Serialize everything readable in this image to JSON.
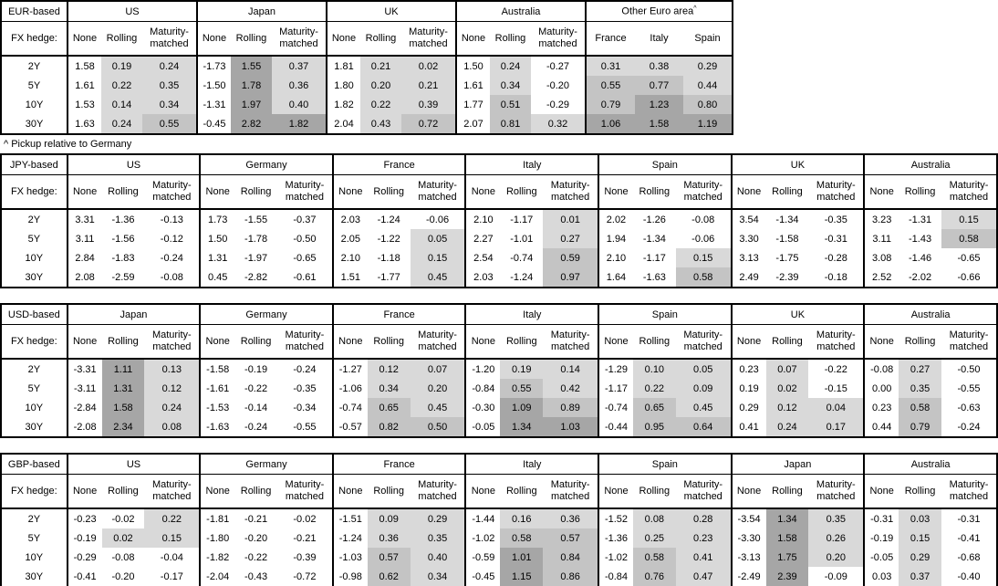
{
  "page": {
    "footnote": "^ Pickup relative to Germany",
    "fx_hedge_label": "FX hedge:",
    "hedge_headers": [
      "None",
      "Rolling",
      "Maturity-matched"
    ],
    "tenors": [
      "2Y",
      "5Y",
      "10Y",
      "30Y"
    ]
  },
  "heat_colors": {
    "none": "#ffffff",
    "light": "#d9d9d9",
    "medium": "#c4c4c4",
    "dark": "#a6a6a6"
  },
  "heat_thresholds": {
    "light_min": 0,
    "medium_min": 0.5,
    "dark_min": 1.0
  },
  "tables": [
    {
      "id": "eur-based-table",
      "base": "EUR-based",
      "groups": [
        {
          "name": "US",
          "type": "hedge",
          "rows": [
            [
              "1.58",
              "0.19",
              "0.24"
            ],
            [
              "1.61",
              "0.22",
              "0.35"
            ],
            [
              "1.53",
              "0.14",
              "0.34"
            ],
            [
              "1.63",
              "0.24",
              "0.55"
            ]
          ]
        },
        {
          "name": "Japan",
          "type": "hedge",
          "rows": [
            [
              "-1.73",
              "1.55",
              "0.37"
            ],
            [
              "-1.50",
              "1.78",
              "0.36"
            ],
            [
              "-1.31",
              "1.97",
              "0.40"
            ],
            [
              "-0.45",
              "2.82",
              "1.82"
            ]
          ]
        },
        {
          "name": "UK",
          "type": "hedge",
          "rows": [
            [
              "1.81",
              "0.21",
              "0.02"
            ],
            [
              "1.80",
              "0.20",
              "0.21"
            ],
            [
              "1.82",
              "0.22",
              "0.39"
            ],
            [
              "2.04",
              "0.43",
              "0.72"
            ]
          ]
        },
        {
          "name": "Australia",
          "type": "hedge",
          "rows": [
            [
              "1.50",
              "0.24",
              "-0.27"
            ],
            [
              "1.61",
              "0.34",
              "-0.20"
            ],
            [
              "1.77",
              "0.51",
              "-0.29"
            ],
            [
              "2.07",
              "0.81",
              "0.32"
            ]
          ]
        },
        {
          "name": "Other Euro area",
          "sup": "^",
          "type": "spread",
          "sub_headers": [
            "France",
            "Italy",
            "Spain"
          ],
          "rows": [
            [
              "0.31",
              "0.38",
              "0.29"
            ],
            [
              "0.55",
              "0.77",
              "0.44"
            ],
            [
              "0.79",
              "1.23",
              "0.80"
            ],
            [
              "1.06",
              "1.58",
              "1.19"
            ]
          ]
        }
      ]
    },
    {
      "id": "jpy-based-table",
      "base": "JPY-based",
      "groups": [
        {
          "name": "US",
          "type": "hedge",
          "rows": [
            [
              "3.31",
              "-1.36",
              "-0.13"
            ],
            [
              "3.11",
              "-1.56",
              "-0.12"
            ],
            [
              "2.84",
              "-1.83",
              "-0.24"
            ],
            [
              "2.08",
              "-2.59",
              "-0.08"
            ]
          ]
        },
        {
          "name": "Germany",
          "type": "hedge",
          "rows": [
            [
              "1.73",
              "-1.55",
              "-0.37"
            ],
            [
              "1.50",
              "-1.78",
              "-0.50"
            ],
            [
              "1.31",
              "-1.97",
              "-0.65"
            ],
            [
              "0.45",
              "-2.82",
              "-0.61"
            ]
          ]
        },
        {
          "name": "France",
          "type": "hedge",
          "rows": [
            [
              "2.03",
              "-1.24",
              "-0.06"
            ],
            [
              "2.05",
              "-1.22",
              "0.05"
            ],
            [
              "2.10",
              "-1.18",
              "0.15"
            ],
            [
              "1.51",
              "-1.77",
              "0.45"
            ]
          ]
        },
        {
          "name": "Italy",
          "type": "hedge",
          "rows": [
            [
              "2.10",
              "-1.17",
              "0.01"
            ],
            [
              "2.27",
              "-1.01",
              "0.27"
            ],
            [
              "2.54",
              "-0.74",
              "0.59"
            ],
            [
              "2.03",
              "-1.24",
              "0.97"
            ]
          ]
        },
        {
          "name": "Spain",
          "type": "hedge",
          "rows": [
            [
              "2.02",
              "-1.26",
              "-0.08"
            ],
            [
              "1.94",
              "-1.34",
              "-0.06"
            ],
            [
              "2.10",
              "-1.17",
              "0.15"
            ],
            [
              "1.64",
              "-1.63",
              "0.58"
            ]
          ]
        },
        {
          "name": "UK",
          "type": "hedge",
          "rows": [
            [
              "3.54",
              "-1.34",
              "-0.35"
            ],
            [
              "3.30",
              "-1.58",
              "-0.31"
            ],
            [
              "3.13",
              "-1.75",
              "-0.28"
            ],
            [
              "2.49",
              "-2.39",
              "-0.18"
            ]
          ]
        },
        {
          "name": "Australia",
          "type": "hedge",
          "rows": [
            [
              "3.23",
              "-1.31",
              "0.15"
            ],
            [
              "3.11",
              "-1.43",
              "0.58"
            ],
            [
              "3.08",
              "-1.46",
              "-0.65"
            ],
            [
              "2.52",
              "-2.02",
              "-0.66"
            ]
          ]
        }
      ]
    },
    {
      "id": "usd-based-table",
      "base": "USD-based",
      "groups": [
        {
          "name": "Japan",
          "type": "hedge",
          "rows": [
            [
              "-3.31",
              "1.11",
              "0.13"
            ],
            [
              "-3.11",
              "1.31",
              "0.12"
            ],
            [
              "-2.84",
              "1.58",
              "0.24"
            ],
            [
              "-2.08",
              "2.34",
              "0.08"
            ]
          ]
        },
        {
          "name": "Germany",
          "type": "hedge",
          "rows": [
            [
              "-1.58",
              "-0.19",
              "-0.24"
            ],
            [
              "-1.61",
              "-0.22",
              "-0.35"
            ],
            [
              "-1.53",
              "-0.14",
              "-0.34"
            ],
            [
              "-1.63",
              "-0.24",
              "-0.55"
            ]
          ]
        },
        {
          "name": "France",
          "type": "hedge",
          "rows": [
            [
              "-1.27",
              "0.12",
              "0.07"
            ],
            [
              "-1.06",
              "0.34",
              "0.20"
            ],
            [
              "-0.74",
              "0.65",
              "0.45"
            ],
            [
              "-0.57",
              "0.82",
              "0.50"
            ]
          ]
        },
        {
          "name": "Italy",
          "type": "hedge",
          "rows": [
            [
              "-1.20",
              "0.19",
              "0.14"
            ],
            [
              "-0.84",
              "0.55",
              "0.42"
            ],
            [
              "-0.30",
              "1.09",
              "0.89"
            ],
            [
              "-0.05",
              "1.34",
              "1.03"
            ]
          ]
        },
        {
          "name": "Spain",
          "type": "hedge",
          "rows": [
            [
              "-1.29",
              "0.10",
              "0.05"
            ],
            [
              "-1.17",
              "0.22",
              "0.09"
            ],
            [
              "-0.74",
              "0.65",
              "0.45"
            ],
            [
              "-0.44",
              "0.95",
              "0.64"
            ]
          ]
        },
        {
          "name": "UK",
          "type": "hedge",
          "rows": [
            [
              "0.23",
              "0.07",
              "-0.22"
            ],
            [
              "0.19",
              "0.02",
              "-0.15"
            ],
            [
              "0.29",
              "0.12",
              "0.04"
            ],
            [
              "0.41",
              "0.24",
              "0.17"
            ]
          ]
        },
        {
          "name": "Australia",
          "type": "hedge",
          "rows": [
            [
              "-0.08",
              "0.27",
              "-0.50"
            ],
            [
              "0.00",
              "0.35",
              "-0.55"
            ],
            [
              "0.23",
              "0.58",
              "-0.63"
            ],
            [
              "0.44",
              "0.79",
              "-0.24"
            ]
          ]
        }
      ]
    },
    {
      "id": "gbp-based-table",
      "base": "GBP-based",
      "groups": [
        {
          "name": "US",
          "type": "hedge",
          "rows": [
            [
              "-0.23",
              "-0.02",
              "0.22"
            ],
            [
              "-0.19",
              "0.02",
              "0.15"
            ],
            [
              "-0.29",
              "-0.08",
              "-0.04"
            ],
            [
              "-0.41",
              "-0.20",
              "-0.17"
            ]
          ]
        },
        {
          "name": "Germany",
          "type": "hedge",
          "rows": [
            [
              "-1.81",
              "-0.21",
              "-0.02"
            ],
            [
              "-1.80",
              "-0.20",
              "-0.21"
            ],
            [
              "-1.82",
              "-0.22",
              "-0.39"
            ],
            [
              "-2.04",
              "-0.43",
              "-0.72"
            ]
          ]
        },
        {
          "name": "France",
          "type": "hedge",
          "rows": [
            [
              "-1.51",
              "0.09",
              "0.29"
            ],
            [
              "-1.24",
              "0.36",
              "0.35"
            ],
            [
              "-1.03",
              "0.57",
              "0.40"
            ],
            [
              "-0.98",
              "0.62",
              "0.34"
            ]
          ]
        },
        {
          "name": "Italy",
          "type": "hedge",
          "rows": [
            [
              "-1.44",
              "0.16",
              "0.36"
            ],
            [
              "-1.02",
              "0.58",
              "0.57"
            ],
            [
              "-0.59",
              "1.01",
              "0.84"
            ],
            [
              "-0.45",
              "1.15",
              "0.86"
            ]
          ]
        },
        {
          "name": "Spain",
          "type": "hedge",
          "rows": [
            [
              "-1.52",
              "0.08",
              "0.28"
            ],
            [
              "-1.36",
              "0.25",
              "0.23"
            ],
            [
              "-1.02",
              "0.58",
              "0.41"
            ],
            [
              "-0.84",
              "0.76",
              "0.47"
            ]
          ]
        },
        {
          "name": "Japan",
          "type": "hedge",
          "rows": [
            [
              "-3.54",
              "1.34",
              "0.35"
            ],
            [
              "-3.30",
              "1.58",
              "0.26"
            ],
            [
              "-3.13",
              "1.75",
              "0.20"
            ],
            [
              "-2.49",
              "2.39",
              "-0.09"
            ]
          ]
        },
        {
          "name": "Australia",
          "type": "hedge",
          "rows": [
            [
              "-0.31",
              "0.03",
              "-0.31"
            ],
            [
              "-0.19",
              "0.15",
              "-0.41"
            ],
            [
              "-0.05",
              "0.29",
              "-0.68"
            ],
            [
              "0.03",
              "0.37",
              "-0.40"
            ]
          ]
        }
      ]
    }
  ]
}
